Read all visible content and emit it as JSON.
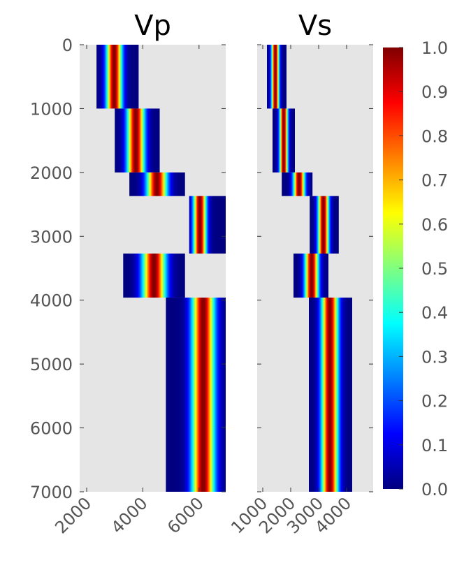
{
  "chart_data": [
    {
      "type": "heatmap",
      "title": "Vp",
      "x_ticks": [
        2000,
        4000,
        6000
      ],
      "y_ticks": [
        0,
        1000,
        2000,
        3000,
        4000,
        5000,
        6000,
        7000
      ],
      "xlim": [
        1750,
        6950
      ],
      "ylim": [
        7000,
        0
      ],
      "layers": [
        {
          "top": 0,
          "bottom": 1000,
          "x_min": 2350,
          "x_max": 3850,
          "peak": 2980,
          "width": 430
        },
        {
          "top": 1000,
          "bottom": 2000,
          "x_min": 3000,
          "x_max": 4600,
          "peak": 3750,
          "width": 480
        },
        {
          "top": 2000,
          "bottom": 2370,
          "x_min": 3520,
          "x_max": 5500,
          "peak": 4500,
          "width": 560
        },
        {
          "top": 2370,
          "bottom": 3270,
          "x_min": 5650,
          "x_max": 6950,
          "peak": 6030,
          "width": 360
        },
        {
          "top": 3270,
          "bottom": 3960,
          "x_min": 3300,
          "x_max": 5500,
          "peak": 4400,
          "width": 640
        },
        {
          "top": 3960,
          "bottom": 7000,
          "x_min": 4820,
          "x_max": 6950,
          "peak": 6150,
          "width": 620
        }
      ]
    },
    {
      "type": "heatmap",
      "title": "Vs",
      "x_ticks": [
        1000,
        2000,
        3000,
        4000
      ],
      "y_ticks": [
        0,
        1000,
        2000,
        3000,
        4000,
        5000,
        6000,
        7000
      ],
      "xlim": [
        800,
        4950
      ],
      "ylim": [
        7000,
        0
      ],
      "layers": [
        {
          "top": 0,
          "bottom": 1000,
          "x_min": 1150,
          "x_max": 1850,
          "peak": 1450,
          "width": 210
        },
        {
          "top": 1000,
          "bottom": 2000,
          "x_min": 1350,
          "x_max": 2150,
          "peak": 1750,
          "width": 230
        },
        {
          "top": 2000,
          "bottom": 2370,
          "x_min": 1680,
          "x_max": 2780,
          "peak": 2300,
          "width": 320
        },
        {
          "top": 2370,
          "bottom": 3270,
          "x_min": 2680,
          "x_max": 3720,
          "peak": 3170,
          "width": 300
        },
        {
          "top": 3270,
          "bottom": 3960,
          "x_min": 2100,
          "x_max": 3350,
          "peak": 2750,
          "width": 380
        },
        {
          "top": 3960,
          "bottom": 7000,
          "x_min": 2650,
          "x_max": 4200,
          "peak": 3400,
          "width": 460
        }
      ]
    }
  ],
  "colorbar": {
    "colormap": "jet",
    "range": [
      0.0,
      1.0
    ],
    "ticks": [
      "0.0",
      "0.1",
      "0.2",
      "0.3",
      "0.4",
      "0.5",
      "0.6",
      "0.7",
      "0.8",
      "0.9",
      "1.0"
    ]
  },
  "colors": {
    "axes_background": "#e5e5e5",
    "tick_label": "#555555",
    "title": "#000000"
  }
}
